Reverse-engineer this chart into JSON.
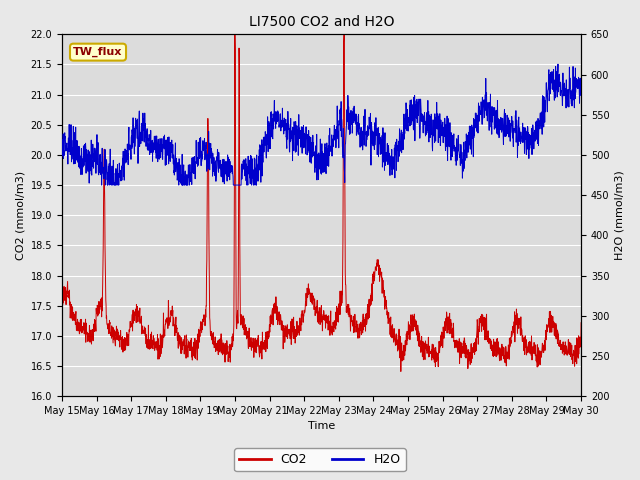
{
  "title": "LI7500 CO2 and H2O",
  "xlabel": "Time",
  "ylabel_left": "CO2 (mmol/m3)",
  "ylabel_right": "H2O (mmol/m3)",
  "co2_ylim": [
    16.0,
    22.0
  ],
  "h2o_ylim": [
    200,
    650
  ],
  "co2_color": "#cc0000",
  "h2o_color": "#0000cc",
  "background_color": "#dcdcdc",
  "fig_background": "#e8e8e8",
  "grid_color": "#ffffff",
  "legend_label": "TW_flux",
  "legend_box_color": "#ffffcc",
  "legend_box_edge": "#ccaa00",
  "x_tick_labels": [
    "May 15",
    "May 16",
    "May 17",
    "May 18",
    "May 19",
    "May 20",
    "May 21",
    "May 22",
    "May 23",
    "May 24",
    "May 25",
    "May 26",
    "May 27",
    "May 28",
    "May 29",
    "May 30"
  ],
  "title_fontsize": 10,
  "axis_label_fontsize": 8,
  "tick_fontsize": 7
}
